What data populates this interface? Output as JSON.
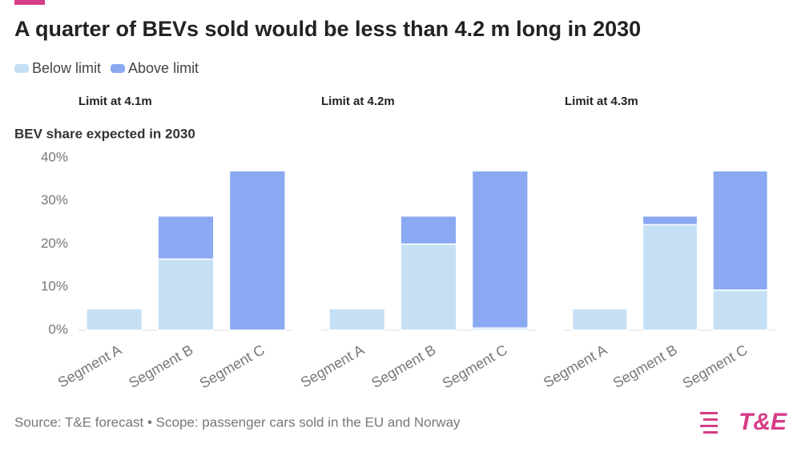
{
  "title": "A quarter of BEVs sold would be less than 4.2 m long in 2030",
  "source": "Source: T&E forecast • Scope: passenger cars sold in the EU and Norway",
  "logo": "T&E",
  "chart_data": [
    {
      "type": "bar",
      "stacked": true,
      "subtitle": "Limit at 4.1m",
      "ylabel": "BEV share expected in 2030",
      "categories": [
        "Segment A",
        "Segment B",
        "Segment C"
      ],
      "series": [
        {
          "name": "Below limit",
          "color": "#c5e0f5",
          "values": [
            5,
            16.5,
            0
          ]
        },
        {
          "name": "Above limit",
          "color": "#8aa9f2",
          "values": [
            0,
            10,
            37
          ]
        }
      ],
      "ylim": [
        0,
        40
      ],
      "yticks": [
        {
          "value": 0,
          "label": "0%"
        },
        {
          "value": 10,
          "label": "10%"
        },
        {
          "value": 20,
          "label": "20%"
        },
        {
          "value": 30,
          "label": "30%"
        },
        {
          "value": 40,
          "label": "40%"
        }
      ]
    },
    {
      "type": "bar",
      "stacked": true,
      "subtitle": "Limit at 4.2m",
      "categories": [
        "Segment A",
        "Segment B",
        "Segment C"
      ],
      "series": [
        {
          "name": "Below limit",
          "color": "#c5e0f5",
          "values": [
            5,
            20,
            0.5
          ]
        },
        {
          "name": "Above limit",
          "color": "#8aa9f2",
          "values": [
            0,
            6.5,
            36.5
          ]
        }
      ],
      "ylim": [
        0,
        40
      ]
    },
    {
      "type": "bar",
      "stacked": true,
      "subtitle": "Limit at 4.3m",
      "categories": [
        "Segment A",
        "Segment B",
        "Segment C"
      ],
      "series": [
        {
          "name": "Below limit",
          "color": "#c5e0f5",
          "values": [
            5,
            24.5,
            9.3
          ]
        },
        {
          "name": "Above limit",
          "color": "#8aa9f2",
          "values": [
            0,
            2,
            27.7
          ]
        }
      ],
      "ylim": [
        0,
        40
      ]
    }
  ]
}
